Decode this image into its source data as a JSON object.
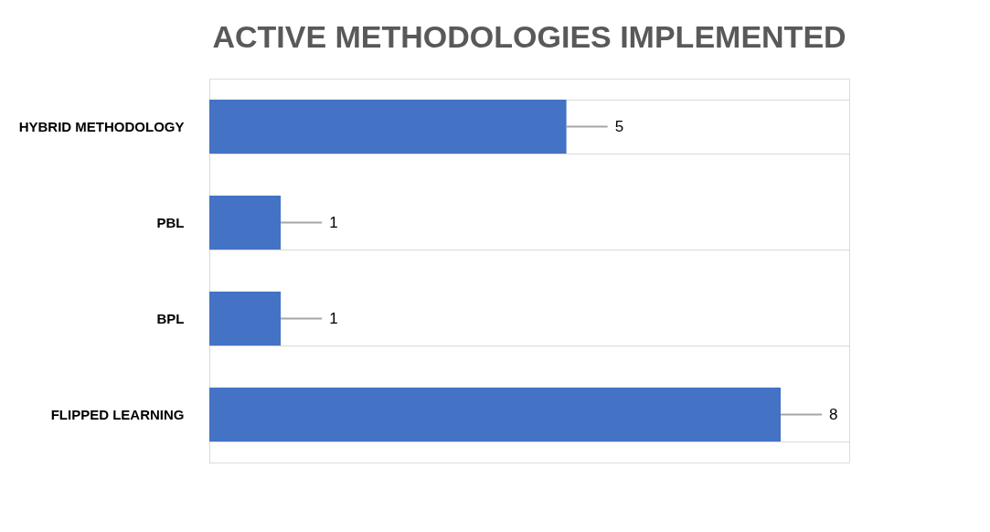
{
  "chart_data": {
    "type": "bar",
    "orientation": "horizontal",
    "title": "ACTIVE METHODOLOGIES IMPLEMENTED",
    "categories": [
      "HYBRID METHODOLOGY",
      "PBL",
      "BPL",
      "FLIPPED LEARNING"
    ],
    "values": [
      5,
      1,
      1,
      8
    ],
    "color": "#4472c4",
    "data_labels": true,
    "grid": "y",
    "tick_labels": "y"
  }
}
